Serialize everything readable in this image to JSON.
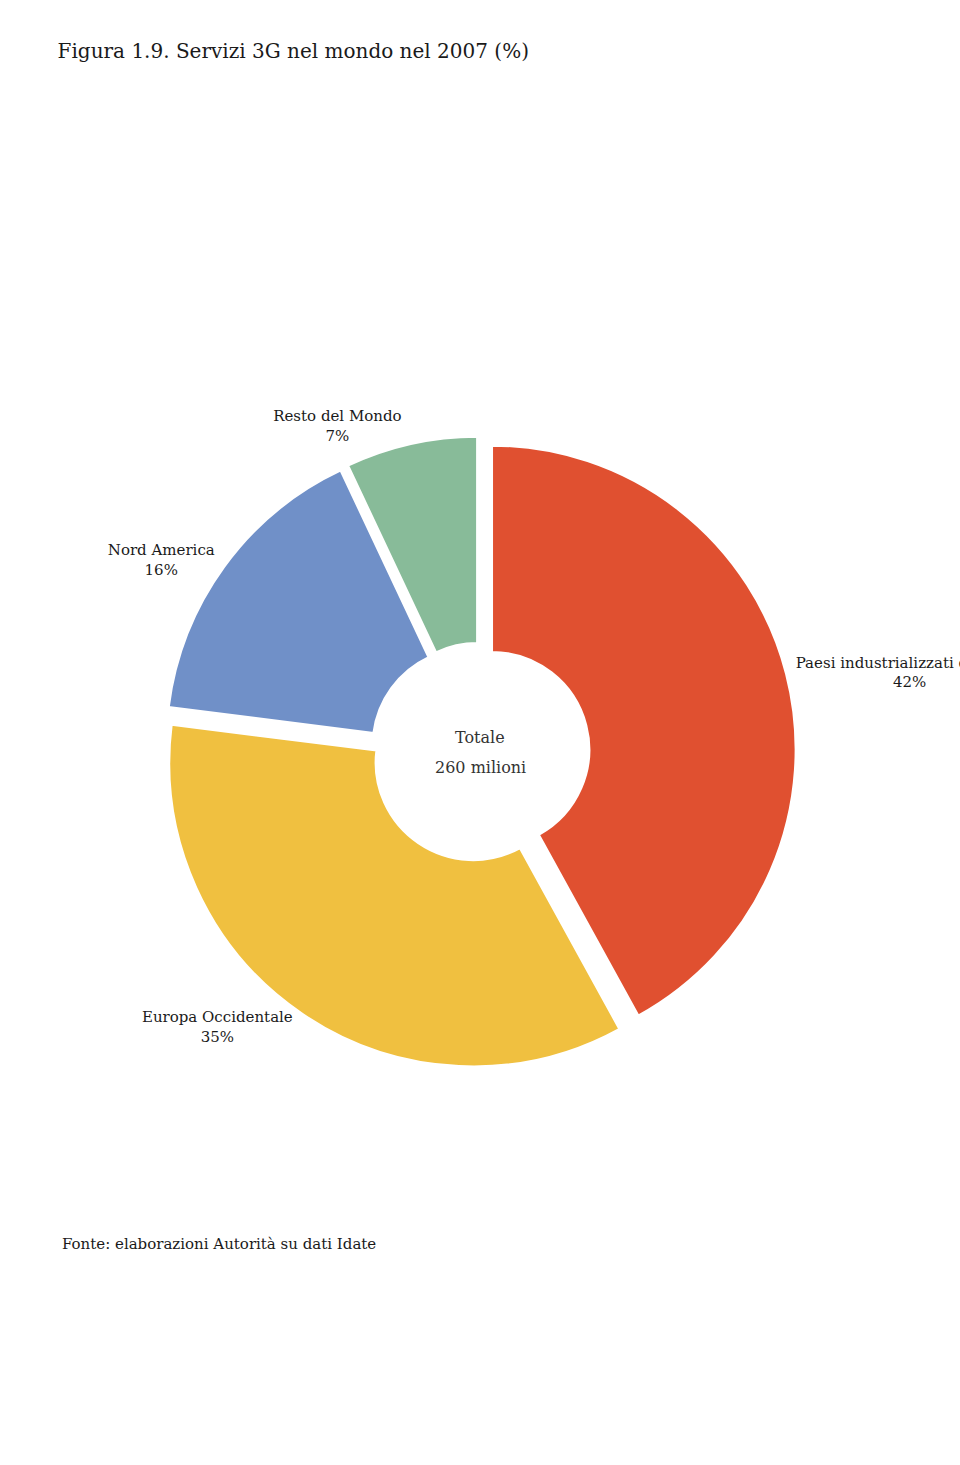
{
  "chart_data": {
    "type": "pie",
    "title": "Figura 1.9. Servizi 3G nel mondo nel 2007 (%)",
    "categories": [
      "Paesi industrializzati dell’Asia",
      "Europa Occidentale",
      "Nord America",
      "Resto del Mondo"
    ],
    "values": [
      42,
      35,
      16,
      7
    ],
    "value_labels": [
      "42%",
      "35%",
      "16%",
      "7%"
    ],
    "colors": [
      "#e05030",
      "#f0c040",
      "#7090c8",
      "#88bb99"
    ],
    "data_labels": true,
    "annotations": [
      "Totale",
      "260 milioni",
      "Fonte: elaborazioni Autorità su dati Idate"
    ]
  }
}
